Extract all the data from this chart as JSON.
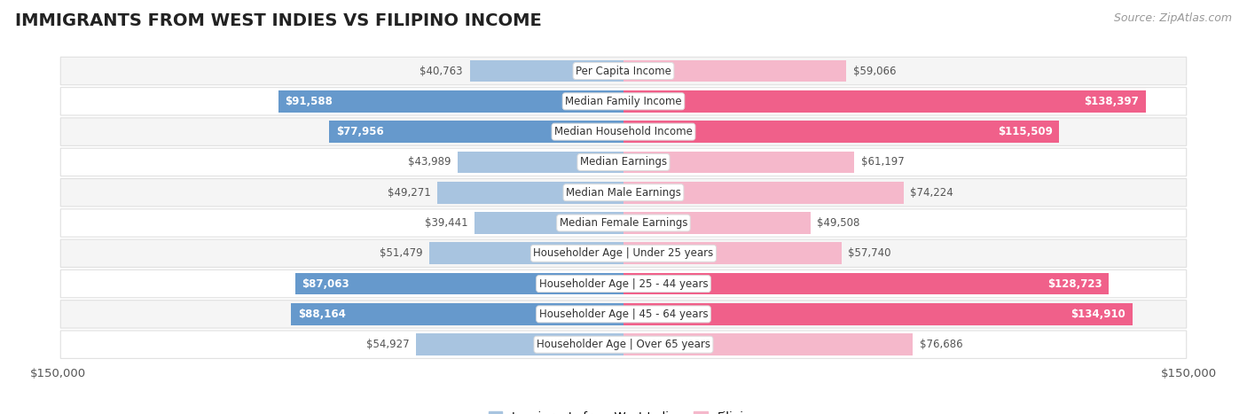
{
  "title": "IMMIGRANTS FROM WEST INDIES VS FILIPINO INCOME",
  "source": "Source: ZipAtlas.com",
  "categories": [
    "Per Capita Income",
    "Median Family Income",
    "Median Household Income",
    "Median Earnings",
    "Median Male Earnings",
    "Median Female Earnings",
    "Householder Age | Under 25 years",
    "Householder Age | 25 - 44 years",
    "Householder Age | 45 - 64 years",
    "Householder Age | Over 65 years"
  ],
  "west_indies_values": [
    40763,
    91588,
    77956,
    43989,
    49271,
    39441,
    51479,
    87063,
    88164,
    54927
  ],
  "filipino_values": [
    59066,
    138397,
    115509,
    61197,
    74224,
    49508,
    57740,
    128723,
    134910,
    76686
  ],
  "west_indies_color_light": "#a8c4e0",
  "west_indies_color_dark": "#6699cc",
  "filipino_color_light": "#f5b8cb",
  "filipino_color_dark": "#f0608a",
  "west_indies_label": "Immigrants from West Indies",
  "filipino_label": "Filipino",
  "axis_max": 150000,
  "row_bg_even": "#f5f5f5",
  "row_bg_odd": "#ffffff",
  "row_border_color": "#e0e0e0",
  "title_fontsize": 14,
  "source_fontsize": 9,
  "value_fontsize": 8.5,
  "cat_fontsize": 8.5,
  "highlight_threshold_wi": 77956,
  "highlight_threshold_fil": 115509
}
